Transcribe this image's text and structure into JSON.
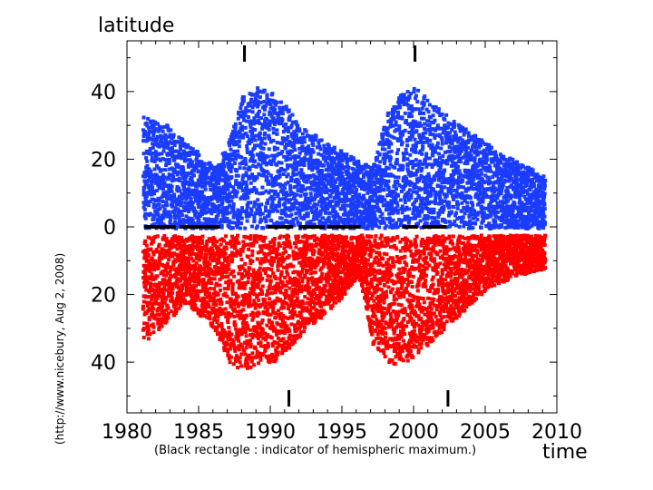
{
  "chart_data": {
    "type": "scatter",
    "title": "latitude",
    "xlabel": "time",
    "side_label": "(http://www.nicebury, Aug 2, 2008)",
    "caption": "(Black rectangle : indicator of hemispheric maximum.)",
    "xlim": [
      1980,
      2010
    ],
    "ylim": [
      -55,
      55
    ],
    "x_ticks": [
      1980,
      1985,
      1990,
      1995,
      2000,
      2005,
      2010
    ],
    "y_ticks": [
      {
        "value": 40,
        "label": "40"
      },
      {
        "value": 20,
        "label": "20"
      },
      {
        "value": 0,
        "label": "0"
      },
      {
        "value": -20,
        "label": "20"
      },
      {
        "value": -40,
        "label": "40"
      }
    ],
    "colors": {
      "north": "#1a3cff",
      "south": "#ff0000",
      "marker": "#000000"
    },
    "series": [
      {
        "key": "north",
        "envelope_upper": [
          [
            1981,
            33
          ],
          [
            1983,
            30
          ],
          [
            1985,
            22
          ],
          [
            1986,
            18
          ],
          [
            1987,
            26
          ],
          [
            1988,
            40
          ],
          [
            1989,
            42
          ],
          [
            1990,
            40
          ],
          [
            1991,
            36
          ],
          [
            1992,
            30
          ],
          [
            1994,
            25
          ],
          [
            1996,
            20
          ],
          [
            1997,
            18
          ],
          [
            1998,
            34
          ],
          [
            1999,
            40
          ],
          [
            2000,
            42
          ],
          [
            2001,
            38
          ],
          [
            2002,
            34
          ],
          [
            2004,
            28
          ],
          [
            2006,
            22
          ],
          [
            2008,
            18
          ],
          [
            2009,
            16
          ]
        ],
        "envelope_lower": [
          [
            1981,
            0
          ],
          [
            2009,
            0
          ]
        ]
      },
      {
        "key": "south",
        "envelope_upper": [
          [
            1981,
            -2
          ],
          [
            2009,
            -2
          ]
        ],
        "envelope_lower": [
          [
            1981,
            -36
          ],
          [
            1982,
            -30
          ],
          [
            1984,
            -22
          ],
          [
            1986,
            -30
          ],
          [
            1987,
            -40
          ],
          [
            1988,
            -42
          ],
          [
            1989,
            -40
          ],
          [
            1990,
            -40
          ],
          [
            1991,
            -36
          ],
          [
            1993,
            -28
          ],
          [
            1995,
            -20
          ],
          [
            1996,
            -14
          ],
          [
            1997,
            -34
          ],
          [
            1998,
            -40
          ],
          [
            1999,
            -40
          ],
          [
            2000,
            -38
          ],
          [
            2001,
            -34
          ],
          [
            2003,
            -26
          ],
          [
            2005,
            -18
          ],
          [
            2007,
            -14
          ],
          [
            2009,
            -12
          ]
        ]
      }
    ],
    "hemispheric_max_markers": {
      "north": [
        1988.2,
        2000.1
      ],
      "south": [
        1991.3,
        2002.4
      ]
    },
    "equator_rects": [
      [
        1981.2,
        1983.4
      ],
      [
        1983.7,
        1986.5
      ],
      [
        1989.8,
        1991.6
      ],
      [
        1992.0,
        1993.8
      ],
      [
        1994.0,
        1996.3
      ],
      [
        1999.2,
        2000.3
      ],
      [
        2000.6,
        2002.3
      ]
    ]
  }
}
